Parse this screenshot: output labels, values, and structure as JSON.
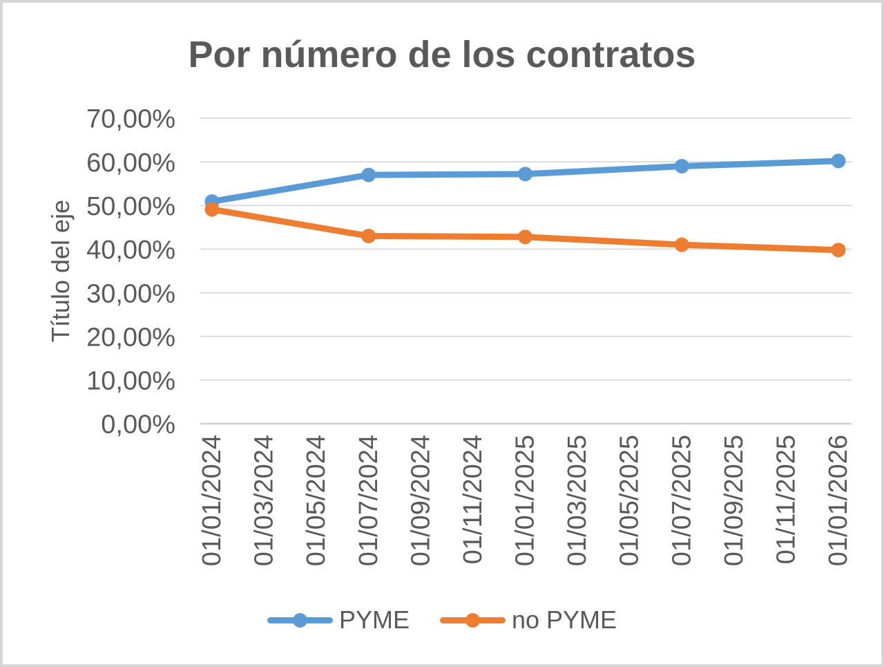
{
  "theme": {
    "background": "#ffffff",
    "frame_border_color": "#d6d6d6",
    "text_color": "#595959",
    "gridline_color": "#dcdcdc",
    "axis_line_color": "#d0d0d0"
  },
  "chart_data": {
    "type": "line",
    "title": "Por número de los contratos",
    "xlabel": "",
    "ylabel": "Título del eje",
    "unit": "percent",
    "ylim": [
      0,
      70
    ],
    "grid": true,
    "legend_position": "bottom",
    "y_ticks": [
      {
        "value": 0,
        "label": "0,00%"
      },
      {
        "value": 10,
        "label": "10,00%"
      },
      {
        "value": 20,
        "label": "20,00%"
      },
      {
        "value": 30,
        "label": "30,00%"
      },
      {
        "value": 40,
        "label": "40,00%"
      },
      {
        "value": 50,
        "label": "50,00%"
      },
      {
        "value": 60,
        "label": "60,00%"
      },
      {
        "value": 70,
        "label": "70,00%"
      }
    ],
    "categories": [
      "01/01/2024",
      "01/03/2024",
      "01/05/2024",
      "01/07/2024",
      "01/09/2024",
      "01/11/2024",
      "01/01/2025",
      "01/03/2025",
      "01/05/2025",
      "01/07/2025",
      "01/09/2025",
      "01/11/2025",
      "01/01/2026"
    ],
    "series": [
      {
        "name": "PYME",
        "color": "#5B9BD5",
        "marker": "circle",
        "category_indices": [
          0,
          3,
          6,
          9,
          12
        ],
        "values": [
          50.9,
          57.0,
          57.2,
          59.0,
          60.2
        ]
      },
      {
        "name": "no PYME",
        "color": "#ED7D31",
        "marker": "circle",
        "category_indices": [
          0,
          3,
          6,
          9,
          12
        ],
        "values": [
          49.1,
          43.0,
          42.8,
          41.0,
          39.8
        ]
      }
    ]
  }
}
